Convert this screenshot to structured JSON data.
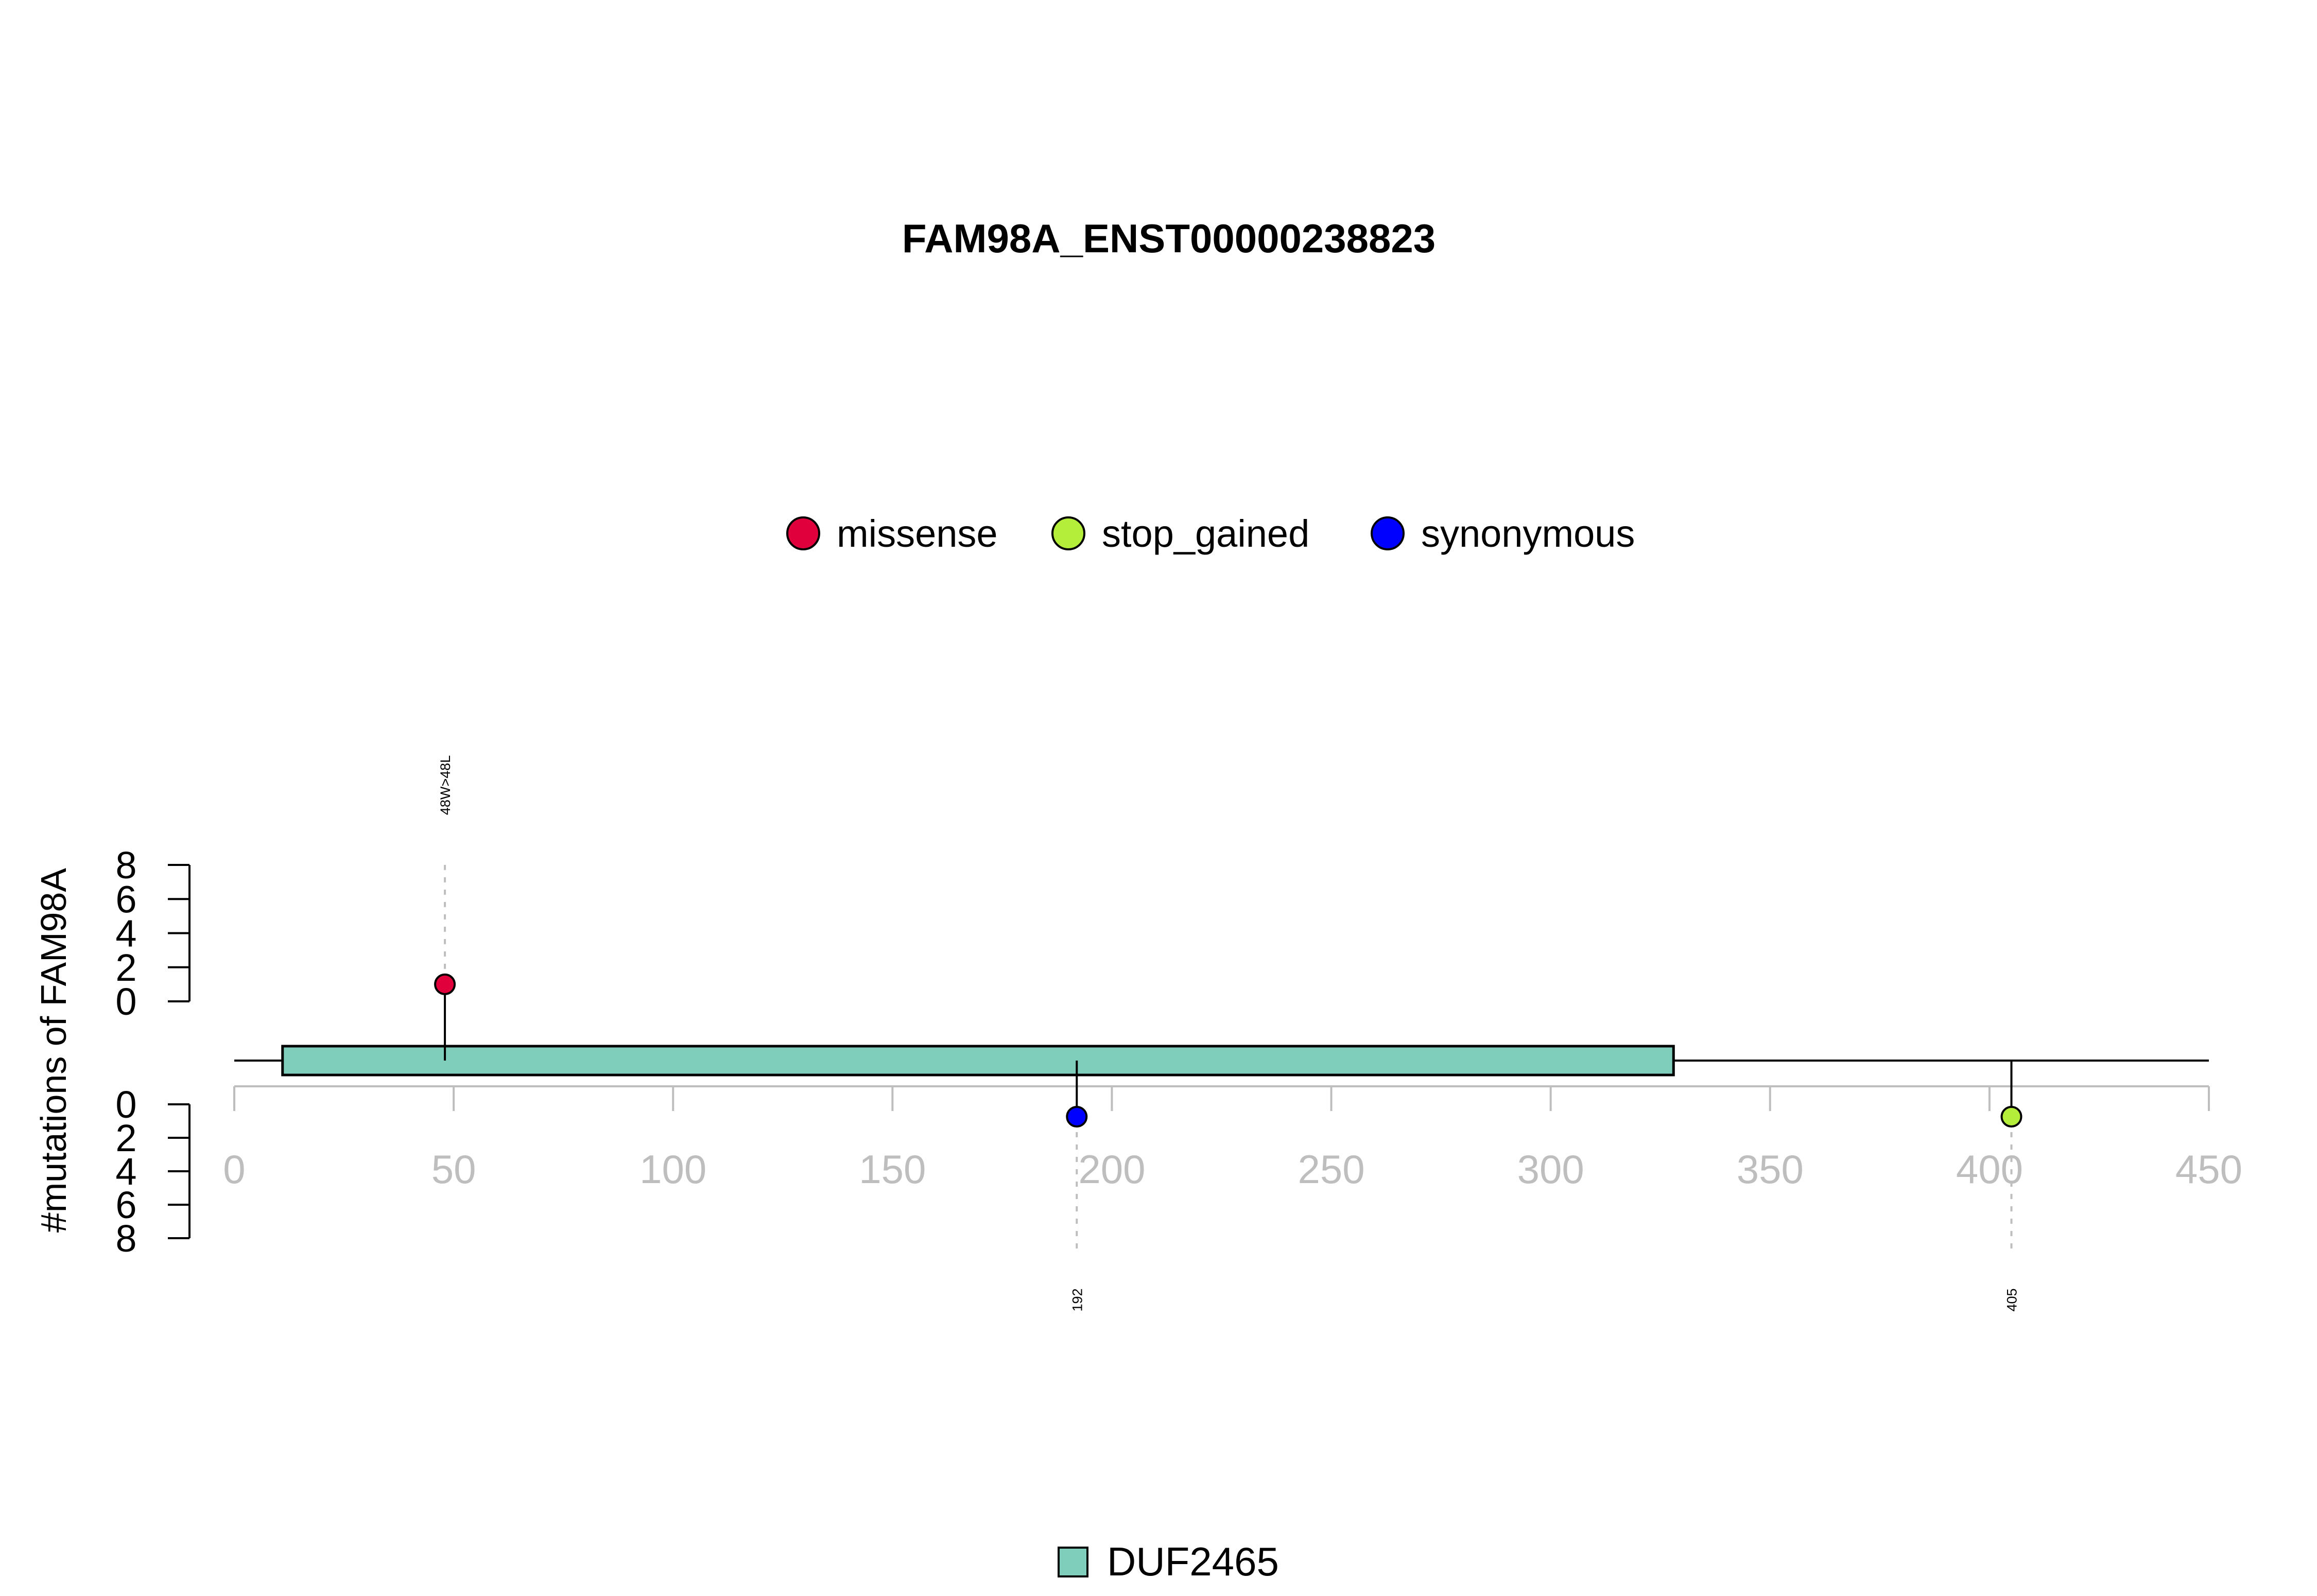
{
  "chart_data": {
    "type": "lollipop",
    "title": "FAM98A_ENST00000238823",
    "ylabel": "#mutations of FAM98A",
    "xlim": [
      0,
      450
    ],
    "x_ticks": [
      "0",
      "50",
      "100",
      "150",
      "200",
      "250",
      "300",
      "350",
      "400",
      "450"
    ],
    "ylim": [
      0,
      8
    ],
    "y_ticks": [
      "0",
      "2",
      "4",
      "6",
      "8"
    ],
    "legend_mutations": [
      {
        "name": "missense",
        "color": "#e0003c"
      },
      {
        "name": "stop_gained",
        "color": "#b4ee3a"
      },
      {
        "name": "synonymous",
        "color": "#0000ff"
      }
    ],
    "domains": [
      {
        "name": "DUF2465",
        "start": 11,
        "end": 328,
        "color": "#7fcdbb"
      }
    ],
    "protein_length": 450,
    "mutations": [
      {
        "position": 48,
        "count": 1,
        "type": "missense",
        "color": "#e0003c",
        "side": "top",
        "label": "48W>48L"
      },
      {
        "position": 192,
        "count": 1,
        "type": "synonymous",
        "color": "#0000ff",
        "side": "bottom",
        "label": "192"
      },
      {
        "position": 405,
        "count": 1,
        "type": "stop_gained",
        "color": "#b4ee3a",
        "side": "bottom",
        "label": "405"
      }
    ]
  }
}
